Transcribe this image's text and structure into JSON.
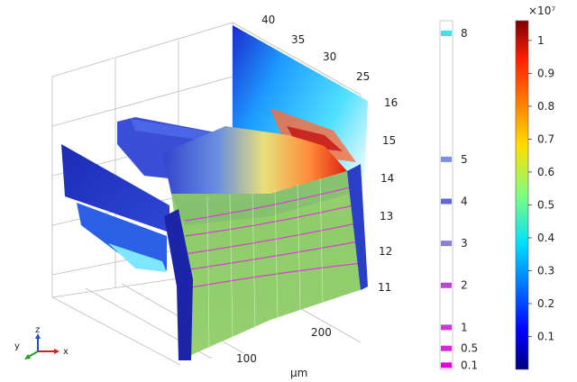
{
  "plot_3d": {
    "y_tick_labels": [
      "40",
      "35",
      "30",
      "25"
    ],
    "z_tick_labels": [
      "16",
      "15",
      "14",
      "13",
      "12",
      "11"
    ],
    "x_tick_labels": [
      "200",
      "100"
    ],
    "x_unit_label": "μm"
  },
  "contour_legend": {
    "levels": [
      "8",
      "5",
      "4",
      "3",
      "2",
      "1",
      "0.5",
      "0.1"
    ],
    "level_colors": [
      "#44e2e6",
      "#7a8ee8",
      "#5f67d8",
      "#8a7ed8",
      "#b44ad0",
      "#c93ad3",
      "#d428d0",
      "#e000d8"
    ]
  },
  "colorbar": {
    "exponent_label": "×10⁷",
    "ticks": [
      "1",
      "0.9",
      "0.8",
      "0.7",
      "0.6",
      "0.5",
      "0.4",
      "0.3",
      "0.2",
      "0.1"
    ]
  },
  "axis_triad": {
    "x_label": "x",
    "y_label": "y",
    "z_label": "z"
  }
}
